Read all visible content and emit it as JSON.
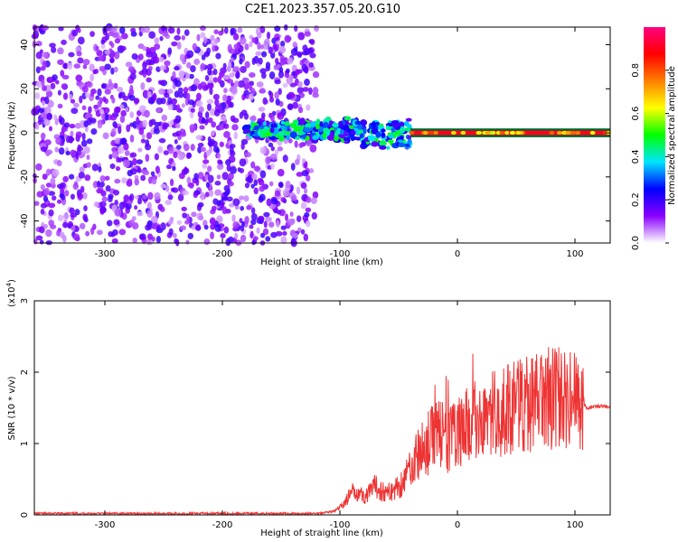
{
  "title": "C2E1.2023.357.05.20.G10",
  "chart_data": [
    {
      "type": "heatmap",
      "xlabel": "Height of straight line (km)",
      "ylabel": "Frequency (Hz)",
      "xlim": [
        -360,
        130
      ],
      "ylim": [
        -50,
        48
      ],
      "xticks": [
        -300,
        -200,
        -100,
        0,
        100
      ],
      "yticks": [
        -40,
        -20,
        0,
        20,
        40
      ],
      "colorbar": {
        "label": "Normalized spectral amplitude",
        "range": [
          0,
          1
        ],
        "ticks": [
          0.0,
          0.2,
          0.4,
          0.6,
          0.8
        ],
        "tick_labels": [
          "0.0",
          "0.2",
          "0.4",
          "0.6",
          "0.8"
        ],
        "colormap": [
          "#ffffff",
          "#8a00ff",
          "#0000ff",
          "#00e5ff",
          "#00ff00",
          "#ffff00",
          "#ff8000",
          "#ff0000",
          "#ff0080"
        ]
      },
      "regions": [
        {
          "x_range": [
            -360,
            -120
          ],
          "freq_range": [
            -50,
            48
          ],
          "amplitude_level": 0.12
        },
        {
          "x_range": [
            -180,
            -40
          ],
          "freq_range": [
            -15,
            10
          ],
          "amplitude_level": 0.3
        },
        {
          "x_range": [
            -40,
            130
          ],
          "freq_range": [
            -2,
            2
          ],
          "amplitude_level": 0.9
        }
      ]
    },
    {
      "type": "line",
      "xlabel": "Height of straight line (km)",
      "ylabel": "SNR (10 * v/v)",
      "yscale_label": "(x10",
      "yscale_exp": "4",
      "yscale_close": ")",
      "xlim": [
        -360,
        130
      ],
      "ylim": [
        0,
        30000
      ],
      "xticks": [
        -300,
        -200,
        -100,
        0,
        100
      ],
      "yticks": [
        0,
        10000,
        20000,
        30000
      ],
      "ytick_labels": [
        "0",
        "1",
        "2",
        "3"
      ],
      "color": "#ee3333",
      "series": [
        {
          "x": [
            -360,
            -300,
            -250,
            -200,
            -150,
            -120,
            -105,
            -100,
            -95,
            -90,
            -85,
            -80,
            -75,
            -70,
            -65,
            -60,
            -55,
            -50,
            -45,
            -40,
            -35,
            -30,
            -25,
            -20,
            -15,
            -10,
            -5,
            0,
            10,
            20,
            30,
            40,
            50,
            60,
            70,
            80,
            85,
            90,
            95,
            100,
            103,
            105,
            108,
            110,
            120,
            130
          ],
          "y": [
            200,
            200,
            200,
            200,
            200,
            200,
            500,
            1000,
            2000,
            3000,
            3500,
            2500,
            3000,
            4000,
            3500,
            3000,
            3500,
            4000,
            5000,
            7000,
            8000,
            9000,
            10000,
            11000,
            12000,
            10000,
            11000,
            11500,
            12500,
            13500,
            14000,
            14500,
            15000,
            15500,
            16000,
            16000,
            16500,
            16000,
            15500,
            17000,
            16000,
            14000,
            15500,
            15000,
            15200,
            15200
          ]
        }
      ]
    }
  ]
}
